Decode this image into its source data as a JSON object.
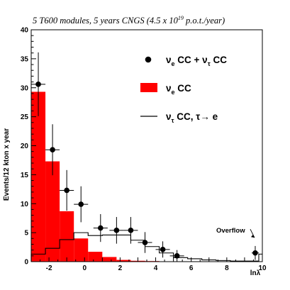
{
  "chart_data": {
    "type": "bar",
    "title": {
      "pre": "5 T600 modules, 5 years CNGS (4.5 x 10",
      "sup": "19",
      "post": " p.o.t./year)"
    },
    "ylabel": "Events/12 kton x year",
    "xlabel": "lnλ",
    "xlim": [
      -3,
      10
    ],
    "ylim": [
      0,
      40
    ],
    "x_ticks": [
      -2,
      0,
      2,
      4,
      6,
      8,
      10
    ],
    "y_ticks": [
      0,
      5,
      10,
      15,
      20,
      25,
      30,
      35,
      40
    ],
    "grid": false,
    "legend_position": "top-right",
    "bin_edges": [
      -3,
      -2.2,
      -1.4,
      -0.6,
      0.2,
      1,
      1.8,
      2.6,
      3.4,
      4.2,
      5,
      5.8,
      6.6,
      7.4,
      8.2,
      9,
      9.8,
      10
    ],
    "series": [
      {
        "kind": "filled-histogram",
        "color": "#ff0000",
        "legend": {
          "pre": "ν",
          "sub": "e",
          "post": " CC"
        },
        "values": [
          29.3,
          17.3,
          8.7,
          4.0,
          1.7,
          0.8,
          0.3,
          0.15,
          0.1,
          0.05,
          0.05,
          0.0,
          0.0,
          0.0,
          0.0,
          0.0,
          0.0
        ]
      },
      {
        "kind": "line-histogram",
        "color": "#000000",
        "legend": {
          "pre": "ν",
          "sub": "τ",
          "post": " CC, τ→ e"
        },
        "values": [
          1.3,
          2.3,
          3.8,
          5.0,
          4.5,
          4.6,
          4.6,
          3.7,
          2.6,
          1.5,
          0.7,
          0.5,
          0.3,
          0.2,
          0.1,
          0.1,
          1.3
        ]
      },
      {
        "kind": "points-with-errors",
        "color": "#000000",
        "legend": {
          "pre": "ν",
          "sub": "e",
          "mid": " CC + ν",
          "sub2": "τ",
          "post": " CC"
        },
        "x": [
          -2.6,
          -1.8,
          -1.0,
          -0.2,
          0.9,
          1.8,
          2.6,
          3.4,
          4.4,
          5.2,
          9.6
        ],
        "y": [
          30.6,
          19.3,
          12.3,
          9.9,
          5.8,
          5.4,
          5.4,
          3.3,
          2.1,
          1.0,
          1.5
        ],
        "yerr": [
          5.5,
          4.4,
          3.5,
          3.1,
          2.4,
          2.3,
          2.3,
          1.8,
          1.4,
          1.0,
          1.2
        ],
        "xerr": [
          0.4,
          0.4,
          0.4,
          0.4,
          0.4,
          0.4,
          0.4,
          0.4,
          0.4,
          0.4,
          0.2
        ]
      }
    ],
    "annotations": [
      {
        "text": "Overflow",
        "x": 9.6,
        "y": 4.5
      }
    ]
  }
}
